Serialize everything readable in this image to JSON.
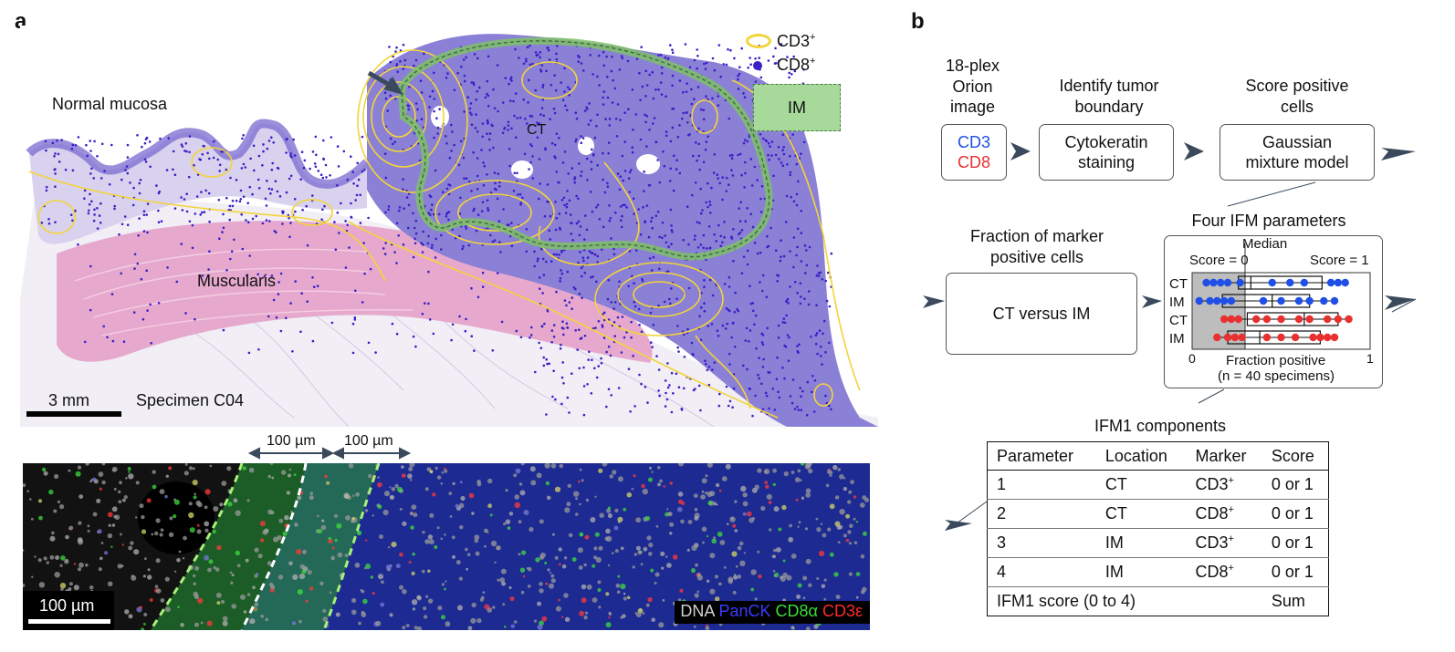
{
  "panel_a": {
    "letter": "a",
    "labels": {
      "normal_mucosa": "Normal mucosa",
      "muscularis": "Muscularis",
      "ct": "CT",
      "specimen": "Specimen C04",
      "scale_3mm": "3 mm"
    },
    "legend": {
      "cd3": "CD3",
      "cd8": "CD8",
      "sup": "+",
      "im": "IM"
    },
    "fluor": {
      "dist1": "100 µm",
      "dist2": "100 µm",
      "scale": "100 µm",
      "channels": [
        {
          "label": "DNA",
          "color": "#d0d0d0"
        },
        {
          "label": "PanCK",
          "color": "#3b3bff"
        },
        {
          "label": "CD8α",
          "color": "#3cdc3c"
        },
        {
          "label": "CD3ε",
          "color": "#ff2a2a"
        }
      ]
    },
    "colors": {
      "contour": "#f2d43a",
      "cd8_dot": "#3b1fc7",
      "im_band": "#7fbf6a",
      "im_fill": "#a6d99a",
      "tissue_purple": "#8a80d6",
      "muscle_pink": "#e6a9cd"
    }
  },
  "panel_b": {
    "letter": "b",
    "step1_title": [
      "18-plex",
      "Orion",
      "image"
    ],
    "step1_box": {
      "cd3": "CD3",
      "cd8": "CD8"
    },
    "step2_title": [
      "Identify tumor",
      "boundary"
    ],
    "step2_box": [
      "Cytokeratin",
      "staining"
    ],
    "step3_title": [
      "Score positive",
      "cells"
    ],
    "step3_box": [
      "Gaussian",
      "mixture model"
    ],
    "fraction_title": [
      "Fraction of marker",
      "positive cells"
    ],
    "ct_vs_im": "CT versus IM",
    "ifm_title": "Four IFM parameters",
    "median": "Median",
    "score0": "Score = 0",
    "score1": "Score = 1",
    "rows": [
      "CT",
      "IM",
      "CT",
      "IM"
    ],
    "tick0": "0",
    "tick1": "1",
    "fraction_positive": "Fraction positive",
    "n_specimens": "(n = 40 specimens)",
    "components_title": "IFM1 components",
    "table": {
      "headers": [
        "Parameter",
        "Location",
        "Marker",
        "Score"
      ],
      "rows": [
        {
          "p": "1",
          "loc": "CT",
          "marker": "CD3",
          "sup": "+",
          "score": "0 or 1"
        },
        {
          "p": "2",
          "loc": "CT",
          "marker": "CD8",
          "sup": "+",
          "score": "0 or 1"
        },
        {
          "p": "3",
          "loc": "IM",
          "marker": "CD3",
          "sup": "+",
          "score": "0 or 1"
        },
        {
          "p": "4",
          "loc": "IM",
          "marker": "CD8",
          "sup": "+",
          "score": "0 or 1"
        }
      ],
      "footer_label": "IFM1 score (0 to 4)",
      "footer_value": "Sum"
    },
    "colors": {
      "blue": "#1f4fe6",
      "red": "#e83030",
      "grey_zone": "#bdbdbd",
      "arrow": "#3a4a5c"
    },
    "box_rows": [
      {
        "color": "blue",
        "points": [
          0.08,
          0.12,
          0.16,
          0.2,
          0.27,
          0.45,
          0.55,
          0.63,
          0.78,
          0.82,
          0.86
        ],
        "q1": 0.26,
        "median": 0.33,
        "q3": 0.73,
        "wmin": 0.08,
        "wmax": 0.86
      },
      {
        "color": "blue",
        "points": [
          0.04,
          0.1,
          0.14,
          0.18,
          0.22,
          0.4,
          0.5,
          0.6,
          0.66,
          0.74,
          0.8
        ],
        "q1": 0.17,
        "median": 0.45,
        "q3": 0.66,
        "wmin": 0.04,
        "wmax": 0.8
      },
      {
        "color": "red",
        "points": [
          0.18,
          0.22,
          0.26,
          0.36,
          0.42,
          0.5,
          0.6,
          0.66,
          0.76,
          0.82,
          0.88
        ],
        "q1": 0.31,
        "median": 0.63,
        "q3": 0.82,
        "wmin": 0.18,
        "wmax": 0.88
      },
      {
        "color": "red",
        "points": [
          0.14,
          0.2,
          0.24,
          0.28,
          0.42,
          0.5,
          0.58,
          0.68,
          0.72,
          0.76,
          0.8
        ],
        "q1": 0.2,
        "median": 0.38,
        "q3": 0.72,
        "wmin": 0.14,
        "wmax": 0.8
      }
    ]
  }
}
